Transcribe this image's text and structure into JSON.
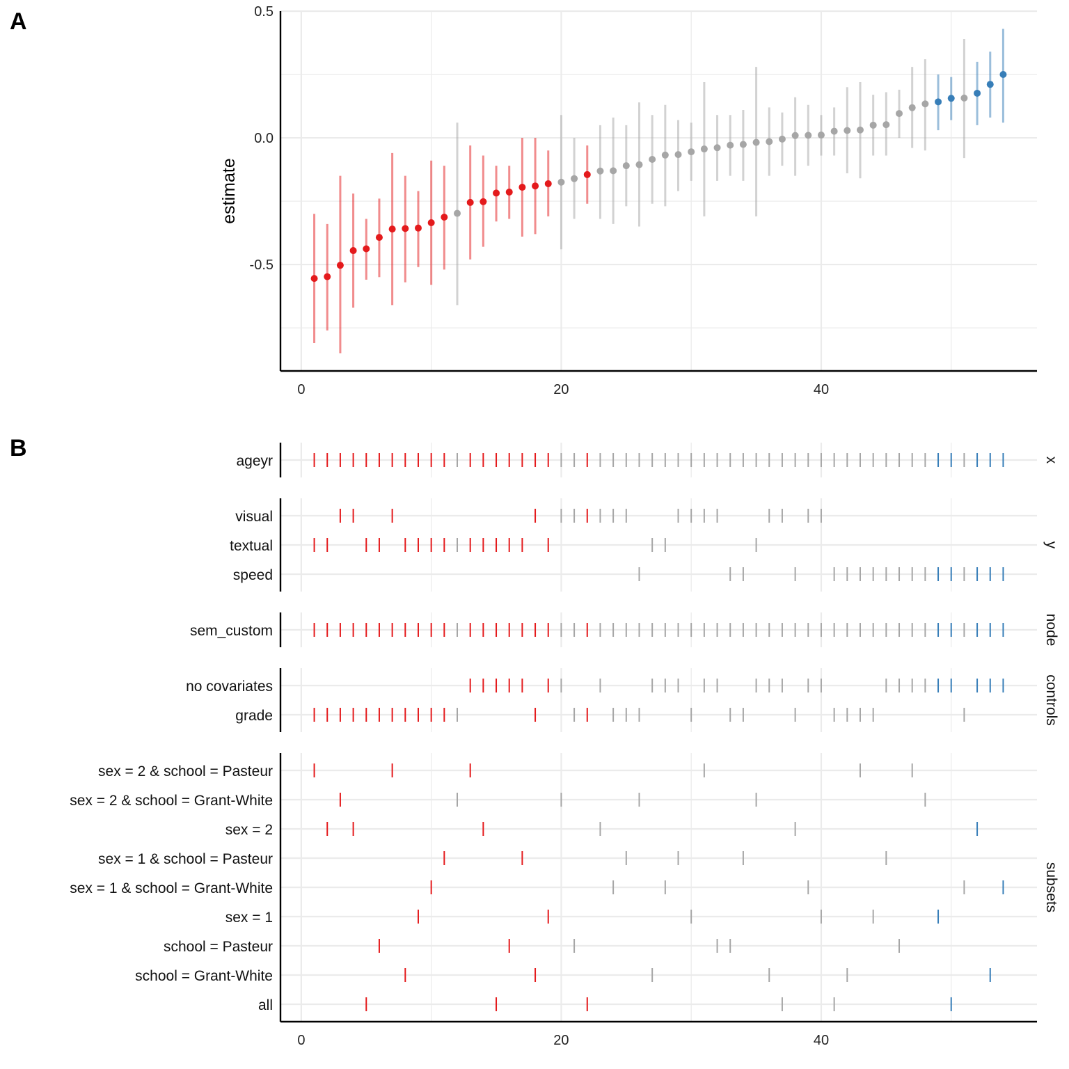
{
  "panels": [
    {
      "label": "A"
    },
    {
      "label": "B"
    }
  ],
  "colors": {
    "negative": "#e41a1c",
    "neutral": "#a6a6a6",
    "positive": "#377eb8",
    "grid": "#ebebeb",
    "axis": "#000000"
  },
  "chart_data": [
    {
      "type": "scatter",
      "title": "",
      "xlabel": "",
      "ylabel": "estimate",
      "xlim": [
        -1.6,
        56.6
      ],
      "ylim": [
        -0.92,
        0.5
      ],
      "x_ticks": [
        {
          "value": 0,
          "label": "0"
        },
        {
          "value": 20,
          "label": "20"
        },
        {
          "value": 40,
          "label": "40"
        }
      ],
      "y_ticks": [
        {
          "value": 0.5,
          "label": "0.5"
        },
        {
          "value": 0.0,
          "label": "0.0"
        },
        {
          "value": -0.5,
          "label": "-0.5"
        }
      ],
      "grid": true,
      "legend": "none",
      "points": [
        {
          "x": 1,
          "y": -0.555,
          "lo": -0.81,
          "hi": -0.3,
          "g": "neg"
        },
        {
          "x": 2,
          "y": -0.548,
          "lo": -0.76,
          "hi": -0.34,
          "g": "neg"
        },
        {
          "x": 3,
          "y": -0.503,
          "lo": -0.85,
          "hi": -0.15,
          "g": "neg"
        },
        {
          "x": 4,
          "y": -0.445,
          "lo": -0.67,
          "hi": -0.22,
          "g": "neg"
        },
        {
          "x": 5,
          "y": -0.438,
          "lo": -0.56,
          "hi": -0.32,
          "g": "neg"
        },
        {
          "x": 6,
          "y": -0.393,
          "lo": -0.55,
          "hi": -0.24,
          "g": "neg"
        },
        {
          "x": 7,
          "y": -0.36,
          "lo": -0.66,
          "hi": -0.06,
          "g": "neg"
        },
        {
          "x": 8,
          "y": -0.358,
          "lo": -0.57,
          "hi": -0.15,
          "g": "neg"
        },
        {
          "x": 9,
          "y": -0.356,
          "lo": -0.51,
          "hi": -0.21,
          "g": "neg"
        },
        {
          "x": 10,
          "y": -0.335,
          "lo": -0.58,
          "hi": -0.09,
          "g": "neg"
        },
        {
          "x": 11,
          "y": -0.313,
          "lo": -0.52,
          "hi": -0.11,
          "g": "neg"
        },
        {
          "x": 12,
          "y": -0.298,
          "lo": -0.66,
          "hi": 0.06,
          "g": "neu"
        },
        {
          "x": 13,
          "y": -0.255,
          "lo": -0.48,
          "hi": -0.03,
          "g": "neg"
        },
        {
          "x": 14,
          "y": -0.252,
          "lo": -0.43,
          "hi": -0.07,
          "g": "neg"
        },
        {
          "x": 15,
          "y": -0.218,
          "lo": -0.33,
          "hi": -0.11,
          "g": "neg"
        },
        {
          "x": 16,
          "y": -0.214,
          "lo": -0.32,
          "hi": -0.11,
          "g": "neg"
        },
        {
          "x": 17,
          "y": -0.195,
          "lo": -0.39,
          "hi": 0.0,
          "g": "neg"
        },
        {
          "x": 18,
          "y": -0.19,
          "lo": -0.38,
          "hi": 0.0,
          "g": "neg"
        },
        {
          "x": 19,
          "y": -0.181,
          "lo": -0.31,
          "hi": -0.05,
          "g": "neg"
        },
        {
          "x": 20,
          "y": -0.175,
          "lo": -0.44,
          "hi": 0.09,
          "g": "neu"
        },
        {
          "x": 21,
          "y": -0.161,
          "lo": -0.32,
          "hi": 0.0,
          "g": "neu"
        },
        {
          "x": 22,
          "y": -0.145,
          "lo": -0.26,
          "hi": -0.03,
          "g": "neg"
        },
        {
          "x": 23,
          "y": -0.131,
          "lo": -0.32,
          "hi": 0.05,
          "g": "neu"
        },
        {
          "x": 24,
          "y": -0.13,
          "lo": -0.34,
          "hi": 0.08,
          "g": "neu"
        },
        {
          "x": 25,
          "y": -0.11,
          "lo": -0.27,
          "hi": 0.05,
          "g": "neu"
        },
        {
          "x": 26,
          "y": -0.106,
          "lo": -0.35,
          "hi": 0.14,
          "g": "neu"
        },
        {
          "x": 27,
          "y": -0.085,
          "lo": -0.26,
          "hi": 0.09,
          "g": "neu"
        },
        {
          "x": 28,
          "y": -0.068,
          "lo": -0.27,
          "hi": 0.13,
          "g": "neu"
        },
        {
          "x": 29,
          "y": -0.066,
          "lo": -0.21,
          "hi": 0.07,
          "g": "neu"
        },
        {
          "x": 30,
          "y": -0.055,
          "lo": -0.17,
          "hi": 0.06,
          "g": "neu"
        },
        {
          "x": 31,
          "y": -0.044,
          "lo": -0.31,
          "hi": 0.22,
          "g": "neu"
        },
        {
          "x": 32,
          "y": -0.039,
          "lo": -0.17,
          "hi": 0.09,
          "g": "neu"
        },
        {
          "x": 33,
          "y": -0.029,
          "lo": -0.15,
          "hi": 0.09,
          "g": "neu"
        },
        {
          "x": 34,
          "y": -0.026,
          "lo": -0.17,
          "hi": 0.11,
          "g": "neu"
        },
        {
          "x": 35,
          "y": -0.018,
          "lo": -0.31,
          "hi": 0.28,
          "g": "neu"
        },
        {
          "x": 36,
          "y": -0.015,
          "lo": -0.15,
          "hi": 0.12,
          "g": "neu"
        },
        {
          "x": 37,
          "y": -0.005,
          "lo": -0.11,
          "hi": 0.1,
          "g": "neu"
        },
        {
          "x": 38,
          "y": 0.009,
          "lo": -0.15,
          "hi": 0.16,
          "g": "neu"
        },
        {
          "x": 39,
          "y": 0.01,
          "lo": -0.11,
          "hi": 0.13,
          "g": "neu"
        },
        {
          "x": 40,
          "y": 0.011,
          "lo": -0.07,
          "hi": 0.09,
          "g": "neu"
        },
        {
          "x": 41,
          "y": 0.026,
          "lo": -0.07,
          "hi": 0.12,
          "g": "neu"
        },
        {
          "x": 42,
          "y": 0.029,
          "lo": -0.14,
          "hi": 0.2,
          "g": "neu"
        },
        {
          "x": 43,
          "y": 0.031,
          "lo": -0.16,
          "hi": 0.22,
          "g": "neu"
        },
        {
          "x": 44,
          "y": 0.05,
          "lo": -0.07,
          "hi": 0.17,
          "g": "neu"
        },
        {
          "x": 45,
          "y": 0.052,
          "lo": -0.07,
          "hi": 0.18,
          "g": "neu"
        },
        {
          "x": 46,
          "y": 0.096,
          "lo": 0.0,
          "hi": 0.19,
          "g": "neu"
        },
        {
          "x": 47,
          "y": 0.119,
          "lo": -0.04,
          "hi": 0.28,
          "g": "neu"
        },
        {
          "x": 48,
          "y": 0.134,
          "lo": -0.05,
          "hi": 0.31,
          "g": "neu"
        },
        {
          "x": 49,
          "y": 0.142,
          "lo": 0.03,
          "hi": 0.25,
          "g": "pos"
        },
        {
          "x": 50,
          "y": 0.156,
          "lo": 0.07,
          "hi": 0.24,
          "g": "pos"
        },
        {
          "x": 51,
          "y": 0.157,
          "lo": -0.08,
          "hi": 0.39,
          "g": "neu"
        },
        {
          "x": 52,
          "y": 0.176,
          "lo": 0.05,
          "hi": 0.3,
          "g": "pos"
        },
        {
          "x": 53,
          "y": 0.211,
          "lo": 0.08,
          "hi": 0.34,
          "g": "pos"
        },
        {
          "x": 54,
          "y": 0.25,
          "lo": 0.06,
          "hi": 0.43,
          "g": "pos"
        }
      ]
    },
    {
      "type": "table",
      "title": "",
      "xlabel": "",
      "xlim": [
        -1.6,
        56.6
      ],
      "x_ticks": [
        {
          "value": 0,
          "label": "0"
        },
        {
          "value": 20,
          "label": "20"
        },
        {
          "value": 40,
          "label": "40"
        }
      ],
      "grid": true,
      "groups": [
        {
          "name": "x",
          "rows": [
            {
              "label": "ageyr",
              "specs": [
                1,
                2,
                3,
                4,
                5,
                6,
                7,
                8,
                9,
                10,
                11,
                12,
                13,
                14,
                15,
                16,
                17,
                18,
                19,
                20,
                21,
                22,
                23,
                24,
                25,
                26,
                27,
                28,
                29,
                30,
                31,
                32,
                33,
                34,
                35,
                36,
                37,
                38,
                39,
                40,
                41,
                42,
                43,
                44,
                45,
                46,
                47,
                48,
                49,
                50,
                51,
                52,
                53,
                54
              ]
            }
          ]
        },
        {
          "name": "y",
          "rows": [
            {
              "label": "visual",
              "specs": [
                3,
                4,
                7,
                18,
                20,
                21,
                22,
                23,
                24,
                25,
                29,
                30,
                31,
                32,
                36,
                37,
                39,
                40
              ]
            },
            {
              "label": "textual",
              "specs": [
                1,
                2,
                5,
                6,
                8,
                9,
                10,
                11,
                12,
                13,
                14,
                15,
                16,
                17,
                19,
                27,
                28,
                35
              ]
            },
            {
              "label": "speed",
              "specs": [
                26,
                33,
                34,
                38,
                41,
                42,
                43,
                44,
                45,
                46,
                47,
                48,
                49,
                50,
                51,
                52,
                53,
                54
              ]
            }
          ]
        },
        {
          "name": "node",
          "rows": [
            {
              "label": "sem_custom",
              "specs": [
                1,
                2,
                3,
                4,
                5,
                6,
                7,
                8,
                9,
                10,
                11,
                12,
                13,
                14,
                15,
                16,
                17,
                18,
                19,
                20,
                21,
                22,
                23,
                24,
                25,
                26,
                27,
                28,
                29,
                30,
                31,
                32,
                33,
                34,
                35,
                36,
                37,
                38,
                39,
                40,
                41,
                42,
                43,
                44,
                45,
                46,
                47,
                48,
                49,
                50,
                51,
                52,
                53,
                54
              ]
            }
          ]
        },
        {
          "name": "controls",
          "rows": [
            {
              "label": "no covariates",
              "specs": [
                13,
                14,
                15,
                16,
                17,
                19,
                20,
                23,
                27,
                28,
                29,
                31,
                32,
                35,
                36,
                37,
                39,
                40,
                45,
                46,
                47,
                48,
                49,
                50,
                52,
                53,
                54
              ]
            },
            {
              "label": "grade",
              "specs": [
                1,
                2,
                3,
                4,
                5,
                6,
                7,
                8,
                9,
                10,
                11,
                12,
                18,
                21,
                22,
                24,
                25,
                26,
                30,
                33,
                34,
                38,
                41,
                42,
                43,
                44,
                51
              ]
            }
          ]
        },
        {
          "name": "subsets",
          "rows": [
            {
              "label": "sex = 2 & school = Pasteur",
              "specs": [
                1,
                7,
                13,
                31,
                43,
                47
              ]
            },
            {
              "label": "sex = 2 & school = Grant-White",
              "specs": [
                3,
                12,
                20,
                26,
                35,
                48
              ]
            },
            {
              "label": "sex = 2",
              "specs": [
                2,
                4,
                14,
                23,
                38,
                52
              ]
            },
            {
              "label": "sex = 1 & school = Pasteur",
              "specs": [
                11,
                17,
                25,
                29,
                34,
                45
              ]
            },
            {
              "label": "sex = 1 & school = Grant-White",
              "specs": [
                10,
                24,
                28,
                39,
                51,
                54
              ]
            },
            {
              "label": "sex = 1",
              "specs": [
                9,
                19,
                30,
                40,
                44,
                49
              ]
            },
            {
              "label": "school = Pasteur",
              "specs": [
                6,
                16,
                21,
                32,
                33,
                46
              ]
            },
            {
              "label": "school = Grant-White",
              "specs": [
                8,
                18,
                27,
                36,
                42,
                53
              ]
            },
            {
              "label": "all",
              "specs": [
                5,
                15,
                22,
                37,
                41,
                50
              ]
            }
          ]
        }
      ]
    }
  ]
}
